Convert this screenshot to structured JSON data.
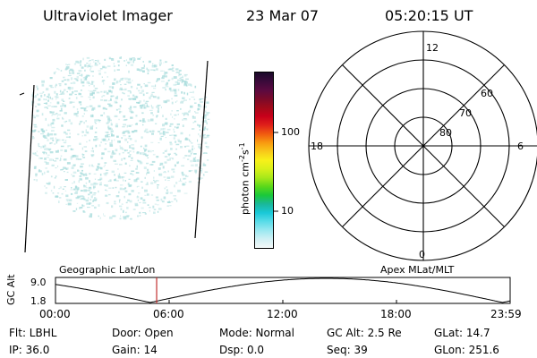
{
  "header": {
    "instrument": "Ultraviolet Imager",
    "date": "23 Mar 07",
    "time": "05:20:15 UT"
  },
  "imager": {
    "emission_color": "#a8dcdc"
  },
  "colorbar": {
    "label": "photon cm",
    "label_sup1": "-2",
    "label_mid": "s",
    "label_sup2": "-1",
    "ticks": [
      "100",
      "10"
    ],
    "colors": [
      "#1a0a2a",
      "#3a0a3a",
      "#5a0a40",
      "#7a0a2a",
      "#a00a1a",
      "#c8001a",
      "#e0201a",
      "#f05a10",
      "#f89a10",
      "#f8c81a",
      "#f8f01a",
      "#d8f01a",
      "#a8e81a",
      "#5ad81a",
      "#1ac83a",
      "#1ab89a",
      "#1ac8d8",
      "#5adce8",
      "#9ae8f0",
      "#d0f0f4",
      "#f4f8f8"
    ]
  },
  "polar": {
    "mlt_labels": {
      "top": "12",
      "left": "18",
      "right": "6",
      "bottom": "0"
    },
    "mlat_labels": [
      "60",
      "70",
      "80"
    ]
  },
  "orbit": {
    "ylabel": "GC Alt",
    "ymax": "9.0",
    "ymin": "1.8",
    "left_title": "Geographic Lat/Lon",
    "right_title": "Apex  MLat/MLT",
    "x_ticks": [
      "00:00",
      "06:00",
      "12:00",
      "18:00",
      "23:59"
    ],
    "current_time_hours": 5.34,
    "marker_color": "#c03030"
  },
  "footer": {
    "row1": [
      "Flt: LBHL",
      "Door: Open",
      "Mode: Normal",
      "GC Alt: 2.5 Re",
      "GLat:  14.7"
    ],
    "row2": [
      "IP: 36.0",
      "Gain: 14",
      "Dsp:     0.0",
      "Seq: 39",
      "GLon: 251.6"
    ]
  }
}
